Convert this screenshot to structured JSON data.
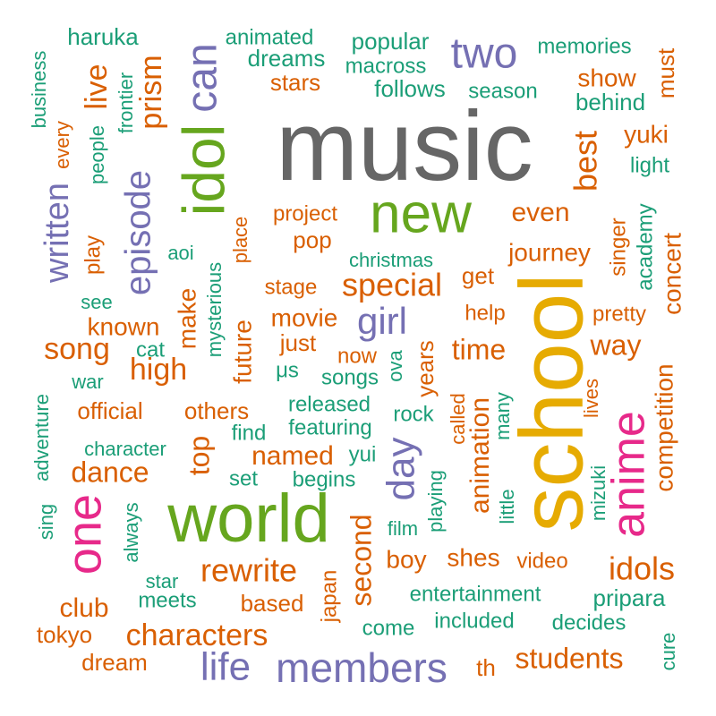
{
  "palette": {
    "orange": "#d95f02",
    "teal": "#1b9e77",
    "purple": "#7570b3",
    "pink": "#e7298a",
    "green": "#66a61e",
    "gold": "#e6ab02",
    "gray": "#666666"
  },
  "words": {
    "music": "music",
    "school": "school",
    "world": "world",
    "idol": "idol",
    "new": "new",
    "anime": "anime",
    "one": "one",
    "two": "two",
    "can": "can",
    "members": "members",
    "life": "life",
    "day": "day",
    "episode": "episode",
    "girl": "girl",
    "written": "written",
    "special": "special",
    "rewrite": "rewrite",
    "idols": "idols",
    "characters": "characters",
    "best": "best",
    "prism": "prism",
    "high": "high",
    "live": "live",
    "song": "song",
    "dance": "dance",
    "top": "top",
    "second": "second",
    "animation": "animation",
    "competition": "competition",
    "concert": "concert",
    "students": "students",
    "way": "way",
    "time": "time",
    "even": "even",
    "club": "club",
    "named": "named",
    "known": "known",
    "make": "make",
    "future": "future",
    "movie": "movie",
    "journey": "journey",
    "show": "show",
    "behind": "behind",
    "must": "must",
    "yuki": "yuki",
    "light": "light",
    "haruka": "haruka",
    "animated": "animated",
    "dreams": "dreams",
    "stars": "stars",
    "popular": "popular",
    "macross": "macross",
    "follows": "follows",
    "season": "season",
    "memories": "memories",
    "business": "business",
    "every": "every",
    "people": "people",
    "frontier": "frontier",
    "project": "project",
    "pop": "pop",
    "place": "place",
    "aoi": "aoi",
    "christmas": "christmas",
    "stage": "stage",
    "get": "get",
    "singer": "singer",
    "academy": "academy",
    "play": "play",
    "see": "see",
    "mysterious": "mysterious",
    "help": "help",
    "pretty": "pretty",
    "just": "just",
    "now": "now",
    "years": "years",
    "songs": "songs",
    "mus": "μs",
    "ova": "ova",
    "cat": "cat",
    "war": "war",
    "official": "official",
    "others": "others",
    "released": "released",
    "featuring": "featuring",
    "find": "find",
    "called": "called",
    "many": "many",
    "lives": "lives",
    "rock": "rock",
    "adventure": "adventure",
    "character": "character",
    "yui": "yui",
    "set": "set",
    "begins": "begins",
    "sing": "sing",
    "always": "always",
    "film": "film",
    "playing": "playing",
    "little": "little",
    "mizuki": "mizuki",
    "boy": "boy",
    "shes": "shes",
    "video": "video",
    "star": "star",
    "meets": "meets",
    "based": "based",
    "japan": "japan",
    "entertainment": "entertainment",
    "pripara": "pripara",
    "come": "come",
    "included": "included",
    "decides": "decides",
    "tokyo": "tokyo",
    "dream": "dream",
    "th": "th",
    "cure": "cure"
  }
}
